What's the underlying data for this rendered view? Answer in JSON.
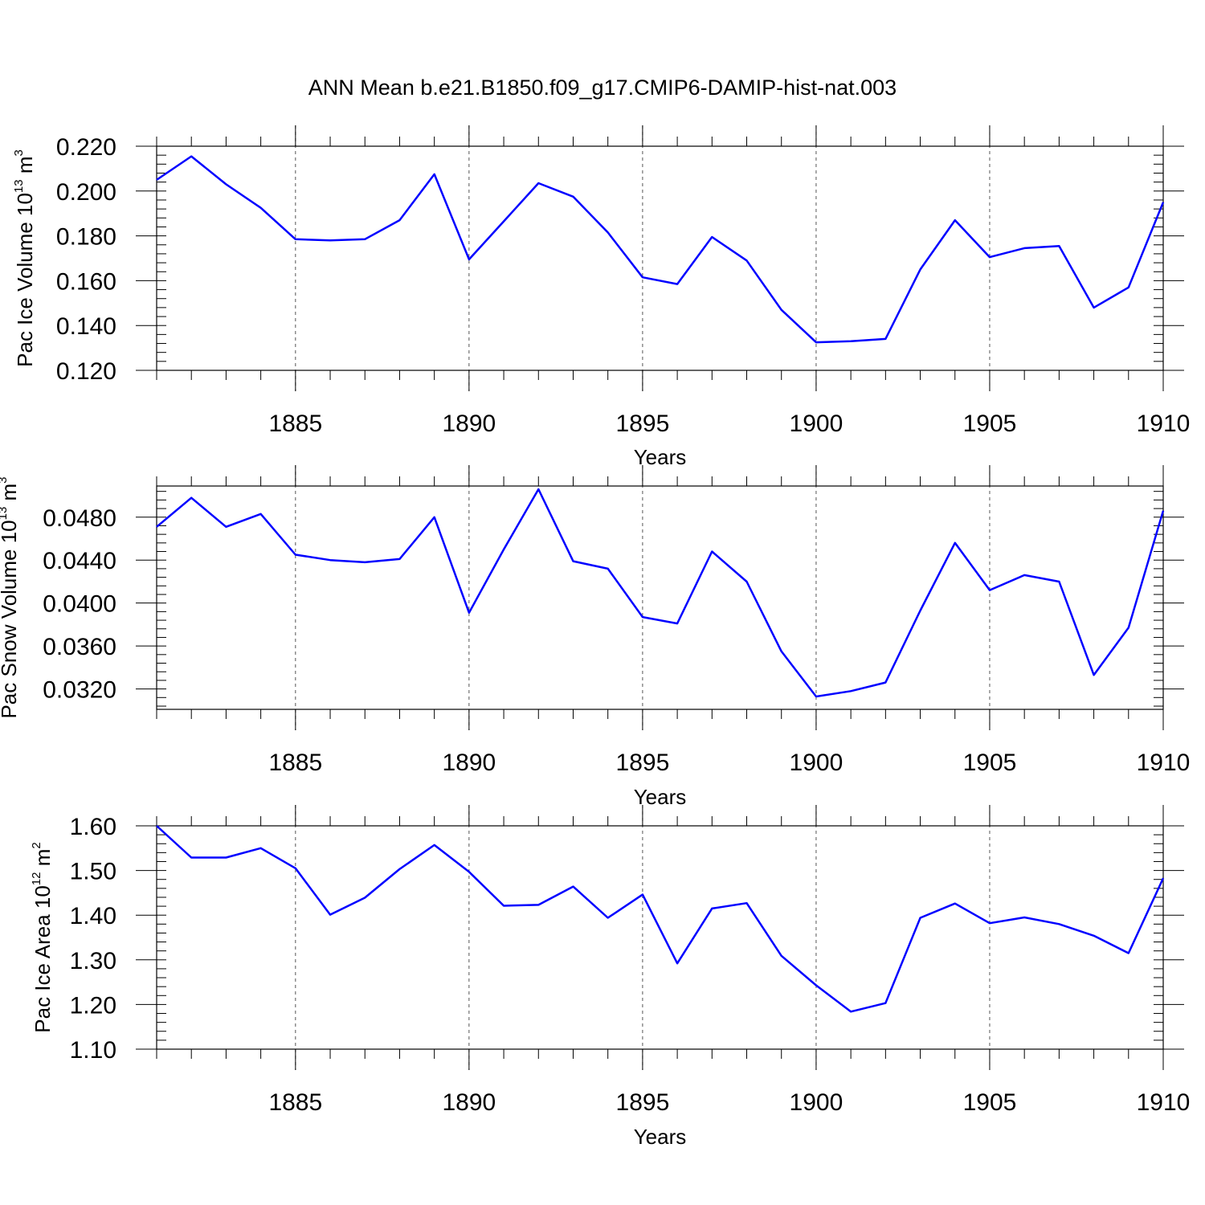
{
  "figure": {
    "title": "ANN Mean b.e21.B1850.f09_g17.CMIP6-DAMIP-hist-nat.003",
    "line_color": "#0000ff"
  },
  "chart_data": [
    {
      "type": "line",
      "title": "ANN Mean b.e21.B1850.f09_g17.CMIP6-DAMIP-hist-nat.003",
      "xlabel": "Years",
      "ylabel": "Pac Ice Volume 10",
      "ylabel_exponent": "13",
      "ylabel_unit": " m",
      "ylabel_unit_exponent": "3",
      "xlim": [
        1881,
        1910
      ],
      "ylim": [
        0.12,
        0.22
      ],
      "x_ticks": [
        1885,
        1890,
        1895,
        1900,
        1905,
        1910
      ],
      "y_ticks": [
        "0.120",
        "0.140",
        "0.160",
        "0.180",
        "0.200",
        "0.220"
      ],
      "grid": "vertical dashed lines at major x ticks",
      "x": [
        1881,
        1882,
        1883,
        1884,
        1885,
        1886,
        1887,
        1888,
        1889,
        1890,
        1891,
        1892,
        1893,
        1894,
        1895,
        1896,
        1897,
        1898,
        1899,
        1900,
        1901,
        1902,
        1903,
        1904,
        1905,
        1906,
        1907,
        1908,
        1909,
        1910
      ],
      "series": [
        {
          "color": "#0000ff",
          "values": [
            0.205,
            0.2155,
            0.203,
            0.1925,
            0.1785,
            0.178,
            0.1785,
            0.187,
            0.2075,
            0.1695,
            0.1865,
            0.2035,
            0.1975,
            0.1815,
            0.1615,
            0.1585,
            0.1795,
            0.169,
            0.147,
            0.1325,
            0.133,
            0.134,
            0.165,
            0.187,
            0.1705,
            0.1745,
            0.1755,
            0.148,
            0.157,
            0.195
          ]
        }
      ]
    },
    {
      "type": "line",
      "xlabel": "Years",
      "ylabel": "Pac Snow Volume 10",
      "ylabel_exponent": "13",
      "ylabel_unit": " m",
      "ylabel_unit_exponent": "3",
      "xlim": [
        1881,
        1910
      ],
      "ylim": [
        0.0301,
        0.0509
      ],
      "x_ticks": [
        1885,
        1890,
        1895,
        1900,
        1905,
        1910
      ],
      "y_ticks": [
        "0.0320",
        "0.0360",
        "0.0400",
        "0.0440",
        "0.0480"
      ],
      "grid": "vertical dashed lines at major x ticks",
      "x": [
        1881,
        1882,
        1883,
        1884,
        1885,
        1886,
        1887,
        1888,
        1889,
        1890,
        1891,
        1892,
        1893,
        1894,
        1895,
        1896,
        1897,
        1898,
        1899,
        1900,
        1901,
        1902,
        1903,
        1904,
        1905,
        1906,
        1907,
        1908,
        1909,
        1910
      ],
      "series": [
        {
          "color": "#0000ff",
          "values": [
            0.0471,
            0.0498,
            0.0471,
            0.0483,
            0.0445,
            0.044,
            0.0438,
            0.0441,
            0.048,
            0.0391,
            0.045,
            0.0506,
            0.0439,
            0.0432,
            0.0387,
            0.0381,
            0.0448,
            0.042,
            0.0355,
            0.0313,
            0.0318,
            0.0326,
            0.0393,
            0.0456,
            0.0412,
            0.0426,
            0.042,
            0.0333,
            0.0377,
            0.0486
          ]
        }
      ]
    },
    {
      "type": "line",
      "xlabel": "Years",
      "ylabel": "Pac Ice Area 10",
      "ylabel_exponent": "12",
      "ylabel_unit": " m",
      "ylabel_unit_exponent": "2",
      "xlim": [
        1881,
        1910
      ],
      "ylim": [
        1.1,
        1.6
      ],
      "x_ticks": [
        1885,
        1890,
        1895,
        1900,
        1905,
        1910
      ],
      "y_ticks": [
        "1.10",
        "1.20",
        "1.30",
        "1.40",
        "1.50",
        "1.60"
      ],
      "grid": "vertical dashed lines at major x ticks",
      "x": [
        1881,
        1882,
        1883,
        1884,
        1885,
        1886,
        1887,
        1888,
        1889,
        1890,
        1891,
        1892,
        1893,
        1894,
        1895,
        1896,
        1897,
        1898,
        1899,
        1900,
        1901,
        1902,
        1903,
        1904,
        1905,
        1906,
        1907,
        1908,
        1909,
        1910
      ],
      "series": [
        {
          "color": "#0000ff",
          "values": [
            1.6,
            1.529,
            1.529,
            1.55,
            1.505,
            1.401,
            1.439,
            1.503,
            1.557,
            1.497,
            1.421,
            1.423,
            1.464,
            1.394,
            1.446,
            1.292,
            1.415,
            1.427,
            1.309,
            1.243,
            1.184,
            1.203,
            1.394,
            1.426,
            1.382,
            1.395,
            1.38,
            1.354,
            1.315,
            1.483
          ]
        }
      ]
    }
  ]
}
